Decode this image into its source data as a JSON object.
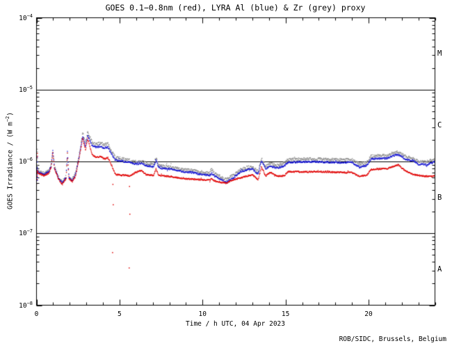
{
  "title": "GOES 0.1−0.8nm (red), LYRA Al (blue) & Zr (grey) proxy",
  "footer": "ROB/SIDC, Brussels, Belgium",
  "axes": {
    "x": {
      "label": "Time / h UTC, 04 Apr 2023",
      "min_hour": 0,
      "max_hour": 24,
      "minor_step_hours": 1,
      "major_ticks": [
        {
          "hour": 0,
          "label": "0"
        },
        {
          "hour": 5,
          "label": "5"
        },
        {
          "hour": 10,
          "label": "10"
        },
        {
          "hour": 15,
          "label": "15"
        },
        {
          "hour": 20,
          "label": "20"
        }
      ]
    },
    "y": {
      "label_pre": "GOES Irradiance / (W m",
      "label_exp": "−2",
      "label_post": ")",
      "scale": "log",
      "min_exp": -8,
      "max_exp": -4,
      "ticks": [
        {
          "exp": -4,
          "base": "10",
          "exp_label": "−4"
        },
        {
          "exp": -5,
          "base": "10",
          "exp_label": "−5"
        },
        {
          "exp": -6,
          "base": "10",
          "exp_label": "−6"
        },
        {
          "exp": -7,
          "base": "10",
          "exp_label": "−7"
        },
        {
          "exp": -8,
          "base": "10",
          "exp_label": "−8"
        }
      ]
    }
  },
  "flare_classes": [
    {
      "label": "M",
      "mid_exp": -4.5
    },
    {
      "label": "C",
      "mid_exp": -5.5
    },
    {
      "label": "B",
      "mid_exp": -6.5
    },
    {
      "label": "A",
      "mid_exp": -7.5
    }
  ],
  "hline_exps": [
    -5,
    -6,
    -7
  ],
  "colors": {
    "goes_red": "#e00000",
    "lyra_al_blue": "#1010d0",
    "lyra_zr_grey": "#8c8c8c",
    "frame": "#000000",
    "background": "#ffffff",
    "text": "#000000"
  },
  "chart_data": {
    "type": "scatter",
    "title": "GOES 0.1−0.8nm (red), LYRA Al (blue) & Zr (grey) proxy",
    "xlabel": "Time / h UTC, 04 Apr 2023",
    "ylabel": "GOES Irradiance / (W m^-2)",
    "xlim": [
      0,
      24
    ],
    "ylog": true,
    "ylim": [
      1e-08,
      0.0001
    ],
    "grid": "hlines at 1e-5, 1e-6, 1e-7",
    "legend_position": "in title",
    "series": [
      {
        "name": "GOES 0.1−0.8nm",
        "color": "red",
        "color_hex": "#e00000",
        "points": [
          [
            0.0,
            7.6e-07
          ],
          [
            0.1,
            6.9e-07
          ],
          [
            0.45,
            6.3e-07
          ],
          [
            0.75,
            6.9e-07
          ],
          [
            0.88,
            8.3e-07
          ],
          [
            0.98,
            1.35e-06
          ],
          [
            1.08,
            8e-07
          ],
          [
            1.3,
            5.8e-07
          ],
          [
            1.55,
            4.8e-07
          ],
          [
            1.78,
            5.8e-07
          ],
          [
            1.86,
            1.3e-06
          ],
          [
            1.95,
            5.8e-07
          ],
          [
            2.15,
            5.2e-07
          ],
          [
            2.35,
            6.3e-07
          ],
          [
            2.55,
            1.05e-06
          ],
          [
            2.78,
            2.1e-06
          ],
          [
            2.95,
            1.45e-06
          ],
          [
            3.08,
            2.1e-06
          ],
          [
            3.35,
            1.24e-06
          ],
          [
            3.6,
            1.13e-06
          ],
          [
            3.85,
            1.18e-06
          ],
          [
            4.1,
            1.08e-06
          ],
          [
            4.3,
            1.13e-06
          ],
          [
            4.55,
            8.6e-07
          ],
          [
            4.75,
            6.6e-07
          ],
          [
            5.1,
            6.5e-07
          ],
          [
            5.6,
            6.3e-07
          ],
          [
            6.0,
            7.1e-07
          ],
          [
            6.35,
            7.4e-07
          ],
          [
            6.6,
            6.6e-07
          ],
          [
            7.05,
            6.4e-07
          ],
          [
            7.2,
            7.9e-07
          ],
          [
            7.35,
            6.4e-07
          ],
          [
            8.0,
            6.2e-07
          ],
          [
            8.8,
            5.8e-07
          ],
          [
            9.3,
            5.7e-07
          ],
          [
            9.8,
            5.6e-07
          ],
          [
            10.45,
            5.5e-07
          ],
          [
            10.55,
            5.9e-07
          ],
          [
            10.7,
            5.4e-07
          ],
          [
            11.0,
            5.2e-07
          ],
          [
            11.4,
            5e-07
          ],
          [
            11.9,
            5.6e-07
          ],
          [
            12.3,
            5.9e-07
          ],
          [
            12.7,
            6.3e-07
          ],
          [
            13.0,
            6.5e-07
          ],
          [
            13.35,
            5.6e-07
          ],
          [
            13.55,
            8.4e-07
          ],
          [
            13.8,
            6.3e-07
          ],
          [
            14.1,
            7.1e-07
          ],
          [
            14.45,
            6.3e-07
          ],
          [
            14.9,
            6.3e-07
          ],
          [
            15.15,
            7.2e-07
          ],
          [
            16.0,
            7.2e-07
          ],
          [
            17.0,
            7.2e-07
          ],
          [
            18.0,
            7.1e-07
          ],
          [
            19.0,
            7e-07
          ],
          [
            19.45,
            6.2e-07
          ],
          [
            19.9,
            6.5e-07
          ],
          [
            20.15,
            7.7e-07
          ],
          [
            20.6,
            7.9e-07
          ],
          [
            21.1,
            7.9e-07
          ],
          [
            21.5,
            8.6e-07
          ],
          [
            21.8,
            9e-07
          ],
          [
            22.2,
            7.4e-07
          ],
          [
            22.7,
            6.6e-07
          ],
          [
            23.2,
            6.3e-07
          ],
          [
            23.7,
            6.2e-07
          ],
          [
            24.0,
            6.3e-07
          ]
        ]
      },
      {
        "name": "LYRA Al proxy",
        "color": "blue",
        "color_hex": "#1010d0",
        "points": [
          [
            0.0,
            8.1e-07
          ],
          [
            0.1,
            7.2e-07
          ],
          [
            0.45,
            6.6e-07
          ],
          [
            0.75,
            7.2e-07
          ],
          [
            0.88,
            8.6e-07
          ],
          [
            0.98,
            1.45e-06
          ],
          [
            1.08,
            8.3e-07
          ],
          [
            1.3,
            6e-07
          ],
          [
            1.55,
            5e-07
          ],
          [
            1.78,
            6e-07
          ],
          [
            1.86,
            1.4e-06
          ],
          [
            1.95,
            6e-07
          ],
          [
            2.15,
            5.4e-07
          ],
          [
            2.35,
            6.6e-07
          ],
          [
            2.55,
            1.1e-06
          ],
          [
            2.78,
            2.25e-06
          ],
          [
            2.95,
            1.62e-06
          ],
          [
            3.08,
            2.3e-06
          ],
          [
            3.35,
            1.66e-06
          ],
          [
            3.6,
            1.58e-06
          ],
          [
            3.85,
            1.62e-06
          ],
          [
            4.1,
            1.54e-06
          ],
          [
            4.3,
            1.58e-06
          ],
          [
            4.55,
            1.24e-06
          ],
          [
            4.75,
            1.04e-06
          ],
          [
            5.1,
            1.02e-06
          ],
          [
            5.6,
            9.7e-07
          ],
          [
            6.0,
            9.2e-07
          ],
          [
            6.35,
            9.4e-07
          ],
          [
            6.6,
            8.8e-07
          ],
          [
            7.05,
            8.4e-07
          ],
          [
            7.2,
            1.06e-06
          ],
          [
            7.35,
            8.2e-07
          ],
          [
            8.0,
            7.9e-07
          ],
          [
            8.8,
            7.2e-07
          ],
          [
            9.3,
            7.1e-07
          ],
          [
            9.8,
            6.7e-07
          ],
          [
            10.45,
            6.4e-07
          ],
          [
            10.55,
            6.9e-07
          ],
          [
            10.7,
            6.3e-07
          ],
          [
            11.0,
            5.8e-07
          ],
          [
            11.4,
            5.1e-07
          ],
          [
            11.9,
            6e-07
          ],
          [
            12.3,
            7.2e-07
          ],
          [
            12.7,
            7.7e-07
          ],
          [
            13.0,
            7.9e-07
          ],
          [
            13.35,
            6.6e-07
          ],
          [
            13.55,
            1.04e-06
          ],
          [
            13.8,
            7.9e-07
          ],
          [
            14.1,
            8.6e-07
          ],
          [
            14.45,
            8.1e-07
          ],
          [
            14.9,
            8.6e-07
          ],
          [
            15.15,
            9.7e-07
          ],
          [
            16.0,
            9.9e-07
          ],
          [
            17.0,
            9.9e-07
          ],
          [
            18.0,
            9.7e-07
          ],
          [
            19.0,
            9.7e-07
          ],
          [
            19.45,
            8.3e-07
          ],
          [
            19.9,
            8.8e-07
          ],
          [
            20.15,
            1.08e-06
          ],
          [
            20.6,
            1.1e-06
          ],
          [
            21.1,
            1.1e-06
          ],
          [
            21.5,
            1.21e-06
          ],
          [
            21.8,
            1.24e-06
          ],
          [
            22.2,
            1.08e-06
          ],
          [
            22.7,
            1.02e-06
          ],
          [
            23.0,
            9.2e-07
          ],
          [
            23.5,
            9e-07
          ],
          [
            24.0,
            9.9e-07
          ]
        ]
      },
      {
        "name": "LYRA Zr proxy",
        "color": "grey",
        "color_hex": "#8c8c8c",
        "points": [
          [
            0.0,
            8.6e-07
          ],
          [
            0.1,
            7.5e-07
          ],
          [
            0.45,
            6.8e-07
          ],
          [
            0.75,
            7.4e-07
          ],
          [
            0.88,
            8.8e-07
          ],
          [
            0.98,
            1.3e-06
          ],
          [
            1.08,
            8.6e-07
          ],
          [
            1.3,
            6.2e-07
          ],
          [
            1.55,
            5.2e-07
          ],
          [
            1.78,
            6.2e-07
          ],
          [
            1.86,
            1.3e-06
          ],
          [
            1.95,
            6.2e-07
          ],
          [
            2.15,
            5.6e-07
          ],
          [
            2.35,
            6.9e-07
          ],
          [
            2.55,
            1.15e-06
          ],
          [
            2.78,
            2.53e-06
          ],
          [
            2.95,
            1.8e-06
          ],
          [
            3.08,
            2.6e-06
          ],
          [
            3.35,
            1.84e-06
          ],
          [
            3.6,
            1.75e-06
          ],
          [
            3.85,
            1.8e-06
          ],
          [
            4.1,
            1.71e-06
          ],
          [
            4.3,
            1.75e-06
          ],
          [
            4.55,
            1.35e-06
          ],
          [
            4.75,
            1.13e-06
          ],
          [
            5.1,
            1.1e-06
          ],
          [
            5.6,
            1.04e-06
          ],
          [
            6.0,
            9.9e-07
          ],
          [
            6.35,
            1.01e-06
          ],
          [
            6.6,
            9.4e-07
          ],
          [
            7.05,
            9e-07
          ],
          [
            7.2,
            1.13e-06
          ],
          [
            7.35,
            8.8e-07
          ],
          [
            8.0,
            8.4e-07
          ],
          [
            8.8,
            7.7e-07
          ],
          [
            9.3,
            7.6e-07
          ],
          [
            9.8,
            7.2e-07
          ],
          [
            10.45,
            6.9e-07
          ],
          [
            10.55,
            7.9e-07
          ],
          [
            10.7,
            6.8e-07
          ],
          [
            11.0,
            6.3e-07
          ],
          [
            11.4,
            5.6e-07
          ],
          [
            11.9,
            6.5e-07
          ],
          [
            12.3,
            7.7e-07
          ],
          [
            12.7,
            8.3e-07
          ],
          [
            13.0,
            8.4e-07
          ],
          [
            13.35,
            7.2e-07
          ],
          [
            13.55,
            1.1e-06
          ],
          [
            13.8,
            8.6e-07
          ],
          [
            14.1,
            9.4e-07
          ],
          [
            14.45,
            8.8e-07
          ],
          [
            14.9,
            9.4e-07
          ],
          [
            15.15,
            1.06e-06
          ],
          [
            16.0,
            1.08e-06
          ],
          [
            17.0,
            1.08e-06
          ],
          [
            18.0,
            1.06e-06
          ],
          [
            19.0,
            1.06e-06
          ],
          [
            19.45,
            9.2e-07
          ],
          [
            19.9,
            9.7e-07
          ],
          [
            20.15,
            1.18e-06
          ],
          [
            20.6,
            1.21e-06
          ],
          [
            21.1,
            1.21e-06
          ],
          [
            21.5,
            1.32e-06
          ],
          [
            21.8,
            1.35e-06
          ],
          [
            22.2,
            1.18e-06
          ],
          [
            22.7,
            1.1e-06
          ],
          [
            23.0,
            1.01e-06
          ],
          [
            23.5,
            9.9e-07
          ],
          [
            24.0,
            1.08e-06
          ]
        ]
      }
    ],
    "red_dropout_points": [
      [
        4.6,
        4.8e-07
      ],
      [
        4.62,
        2.5e-07
      ],
      [
        4.58,
        5.4e-08
      ],
      [
        5.6,
        4.5e-07
      ],
      [
        5.62,
        1.85e-07
      ],
      [
        5.58,
        3.3e-08
      ]
    ],
    "start_transient": {
      "t_range": [
        0,
        0.07
      ],
      "value_range": [
        4.8e-07,
        1.5e-06
      ]
    }
  }
}
